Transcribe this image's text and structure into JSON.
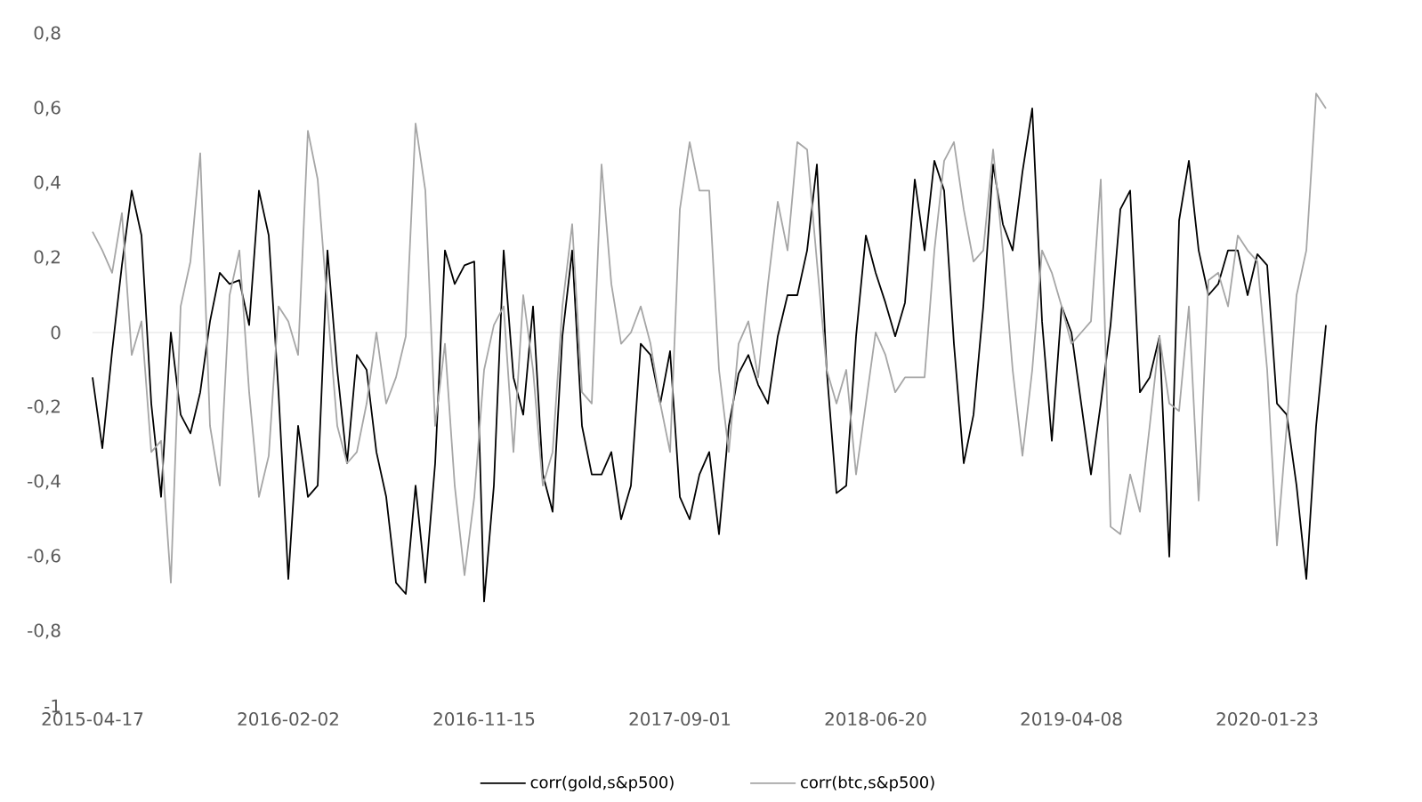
{
  "chart_data": {
    "type": "line",
    "categories": [
      "2015-04-17",
      null,
      null,
      null,
      null,
      null,
      null,
      null,
      null,
      null,
      null,
      null,
      null,
      null,
      null,
      null,
      null,
      null,
      null,
      null,
      "2016-02-02",
      null,
      null,
      null,
      null,
      null,
      null,
      null,
      null,
      null,
      null,
      null,
      null,
      null,
      null,
      null,
      null,
      null,
      null,
      null,
      "2016-11-15",
      null,
      null,
      null,
      null,
      null,
      null,
      null,
      null,
      null,
      null,
      null,
      null,
      null,
      null,
      null,
      null,
      null,
      null,
      null,
      "2017-09-01",
      null,
      null,
      null,
      null,
      null,
      null,
      null,
      null,
      null,
      null,
      null,
      null,
      null,
      null,
      null,
      null,
      null,
      null,
      null,
      "2018-06-20",
      null,
      null,
      null,
      null,
      null,
      null,
      null,
      null,
      null,
      null,
      null,
      null,
      null,
      null,
      null,
      null,
      null,
      null,
      null,
      "2019-04-08",
      null,
      null,
      null,
      null,
      null,
      null,
      null,
      null,
      null,
      null,
      null,
      null,
      null,
      null,
      null,
      null,
      null,
      null,
      null,
      "2020-01-23",
      null,
      null,
      null,
      null,
      null,
      null
    ],
    "series": [
      {
        "name": "corr(gold,s&p500)",
        "color": "#000000",
        "values": [
          -0.12,
          -0.31,
          -0.05,
          0.18,
          0.38,
          0.26,
          -0.19,
          -0.44,
          0.0,
          -0.22,
          -0.27,
          -0.16,
          0.03,
          0.16,
          0.13,
          0.14,
          0.02,
          0.38,
          0.26,
          -0.16,
          -0.66,
          -0.25,
          -0.44,
          -0.41,
          0.22,
          -0.1,
          -0.35,
          -0.06,
          -0.1,
          -0.32,
          -0.44,
          -0.67,
          -0.7,
          -0.41,
          -0.67,
          -0.35,
          0.22,
          0.13,
          0.18,
          0.19,
          -0.72,
          -0.41,
          0.22,
          -0.12,
          -0.22,
          0.07,
          -0.38,
          -0.48,
          -0.01,
          0.22,
          -0.25,
          -0.38,
          -0.38,
          -0.32,
          -0.5,
          -0.41,
          -0.03,
          -0.06,
          -0.19,
          -0.05,
          -0.44,
          -0.5,
          -0.38,
          -0.32,
          -0.54,
          -0.25,
          -0.11,
          -0.06,
          -0.14,
          -0.19,
          -0.01,
          0.1,
          0.1,
          0.22,
          0.45,
          -0.1,
          -0.43,
          -0.41,
          -0.01,
          0.26,
          0.16,
          0.08,
          -0.01,
          0.08,
          0.41,
          0.22,
          0.46,
          0.38,
          -0.03,
          -0.35,
          -0.22,
          0.07,
          0.45,
          0.29,
          0.22,
          0.43,
          0.6,
          0.03,
          -0.29,
          0.07,
          0.0,
          -0.19,
          -0.38,
          -0.19,
          0.02,
          0.33,
          0.38,
          -0.16,
          -0.12,
          -0.01,
          -0.6,
          0.3,
          0.46,
          0.22,
          0.1,
          0.13,
          0.22,
          0.22,
          0.1,
          0.21,
          0.18,
          -0.19,
          -0.22,
          -0.41,
          -0.66,
          -0.25,
          0.02
        ]
      },
      {
        "name": "corr(btc,s&p500)",
        "color": "#a6a6a6",
        "values": [
          0.27,
          0.22,
          0.16,
          0.32,
          -0.06,
          0.03,
          -0.32,
          -0.29,
          -0.67,
          0.07,
          0.19,
          0.48,
          -0.25,
          -0.41,
          0.1,
          0.22,
          -0.16,
          -0.44,
          -0.33,
          0.07,
          0.03,
          -0.06,
          0.54,
          0.41,
          0.07,
          -0.25,
          -0.35,
          -0.32,
          -0.19,
          0.0,
          -0.19,
          -0.12,
          -0.01,
          0.56,
          0.38,
          -0.25,
          -0.03,
          -0.41,
          -0.65,
          -0.44,
          -0.1,
          0.02,
          0.07,
          -0.32,
          0.1,
          -0.1,
          -0.41,
          -0.32,
          0.07,
          0.29,
          -0.16,
          -0.19,
          0.45,
          0.13,
          -0.03,
          0.0,
          0.07,
          -0.03,
          -0.19,
          -0.32,
          0.33,
          0.51,
          0.38,
          0.38,
          -0.1,
          -0.32,
          -0.03,
          0.03,
          -0.12,
          0.13,
          0.35,
          0.22,
          0.51,
          0.49,
          0.19,
          -0.1,
          -0.19,
          -0.1,
          -0.38,
          -0.19,
          0.0,
          -0.06,
          -0.16,
          -0.12,
          -0.12,
          -0.12,
          0.22,
          0.46,
          0.51,
          0.33,
          0.19,
          0.22,
          0.49,
          0.22,
          -0.1,
          -0.33,
          -0.1,
          0.22,
          0.16,
          0.07,
          -0.03,
          0.0,
          0.03,
          0.41,
          -0.52,
          -0.54,
          -0.38,
          -0.48,
          -0.25,
          -0.01,
          -0.19,
          -0.21,
          0.07,
          -0.45,
          0.14,
          0.16,
          0.07,
          0.26,
          0.22,
          0.19,
          -0.1,
          -0.57,
          -0.25,
          0.1,
          0.22,
          0.64,
          0.6
        ]
      }
    ],
    "ylim": [
      -1,
      0.8
    ],
    "yticks": [
      {
        "value": 0.8,
        "label": "0,8"
      },
      {
        "value": 0.6,
        "label": "0,6"
      },
      {
        "value": 0.4,
        "label": "0,4"
      },
      {
        "value": 0.2,
        "label": "0,2"
      },
      0,
      {
        "value": -0.2,
        "label": "-0,2"
      },
      {
        "value": -0.4,
        "label": "-0,4"
      },
      {
        "value": -0.6,
        "label": "-0,6"
      },
      {
        "value": -0.8,
        "label": "-0,8"
      },
      -1
    ],
    "legend": "bottom",
    "line_style": "solid"
  }
}
